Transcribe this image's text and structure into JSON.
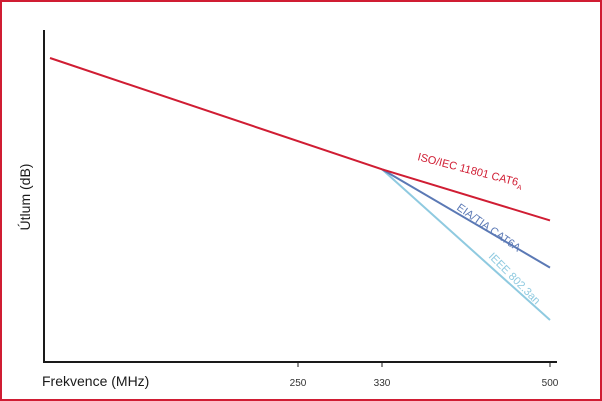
{
  "chart_data": {
    "type": "line",
    "title": "",
    "xlabel": "Frekvence (MHz)",
    "ylabel": "Útlum (dB)",
    "x_ticks": [
      "250",
      "330",
      "500"
    ],
    "x_tick_values": [
      250,
      330,
      500
    ],
    "grid": false,
    "series": [
      {
        "name": "ISO/IEC 11801 CAT6",
        "subscript": "A",
        "color": "#d01d33",
        "x": [
          0,
          330,
          500
        ],
        "y": [
          100,
          57.5,
          38
        ]
      },
      {
        "name": "EIA/TIA CAT6A",
        "color": "#5b79b5",
        "x": [
          330,
          500
        ],
        "y": [
          57.5,
          20
        ]
      },
      {
        "name": "IEEE 802.3an",
        "color": "#8fcae0",
        "x": [
          330,
          500
        ],
        "y": [
          57.5,
          0
        ]
      }
    ]
  }
}
